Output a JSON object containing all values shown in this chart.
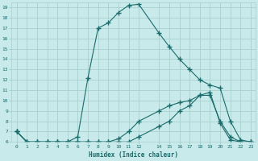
{
  "xlabel": "Humidex (Indice chaleur)",
  "bg_color": "#c8eaea",
  "grid_color": "#aacfcf",
  "line_color": "#1a6b6b",
  "xlim": [
    -0.5,
    23.5
  ],
  "ylim": [
    6,
    19.5
  ],
  "xticks": [
    0,
    1,
    2,
    3,
    4,
    5,
    6,
    7,
    8,
    9,
    10,
    11,
    12,
    14,
    15,
    16,
    17,
    18,
    19,
    20,
    21,
    22,
    23
  ],
  "yticks": [
    6,
    7,
    8,
    9,
    10,
    11,
    12,
    13,
    14,
    15,
    16,
    17,
    18,
    19
  ],
  "line1_x": [
    0,
    1,
    2,
    3,
    4,
    5,
    6,
    7,
    8,
    9,
    10,
    11,
    12,
    14,
    15,
    16,
    17,
    18,
    19,
    20,
    21,
    22,
    23
  ],
  "line1_y": [
    7.0,
    6.0,
    6.0,
    6.0,
    6.0,
    6.0,
    6.0,
    6.0,
    6.0,
    6.0,
    6.0,
    6.0,
    6.5,
    7.5,
    8.0,
    9.0,
    9.5,
    10.5,
    10.5,
    8.0,
    6.5,
    6.0,
    6.0
  ],
  "line2_x": [
    0,
    1,
    2,
    3,
    4,
    5,
    6,
    7,
    8,
    9,
    10,
    11,
    12,
    14,
    15,
    16,
    17,
    18,
    19,
    20,
    21,
    22,
    23
  ],
  "line2_y": [
    7.0,
    6.0,
    6.0,
    6.0,
    6.0,
    6.0,
    6.5,
    12.2,
    17.0,
    17.5,
    18.5,
    19.2,
    19.3,
    16.5,
    15.2,
    14.0,
    13.0,
    12.0,
    11.5,
    11.2,
    8.0,
    6.2,
    6.0
  ],
  "line3_x": [
    0,
    1,
    2,
    3,
    4,
    5,
    6,
    7,
    8,
    9,
    10,
    11,
    12,
    14,
    15,
    16,
    17,
    18,
    19,
    20,
    21,
    22,
    23
  ],
  "line3_y": [
    7.0,
    6.0,
    6.0,
    6.0,
    6.0,
    6.0,
    6.0,
    6.0,
    6.0,
    6.0,
    6.3,
    7.0,
    8.0,
    9.0,
    9.5,
    9.8,
    10.0,
    10.5,
    10.8,
    7.8,
    6.2,
    6.0,
    6.0
  ]
}
